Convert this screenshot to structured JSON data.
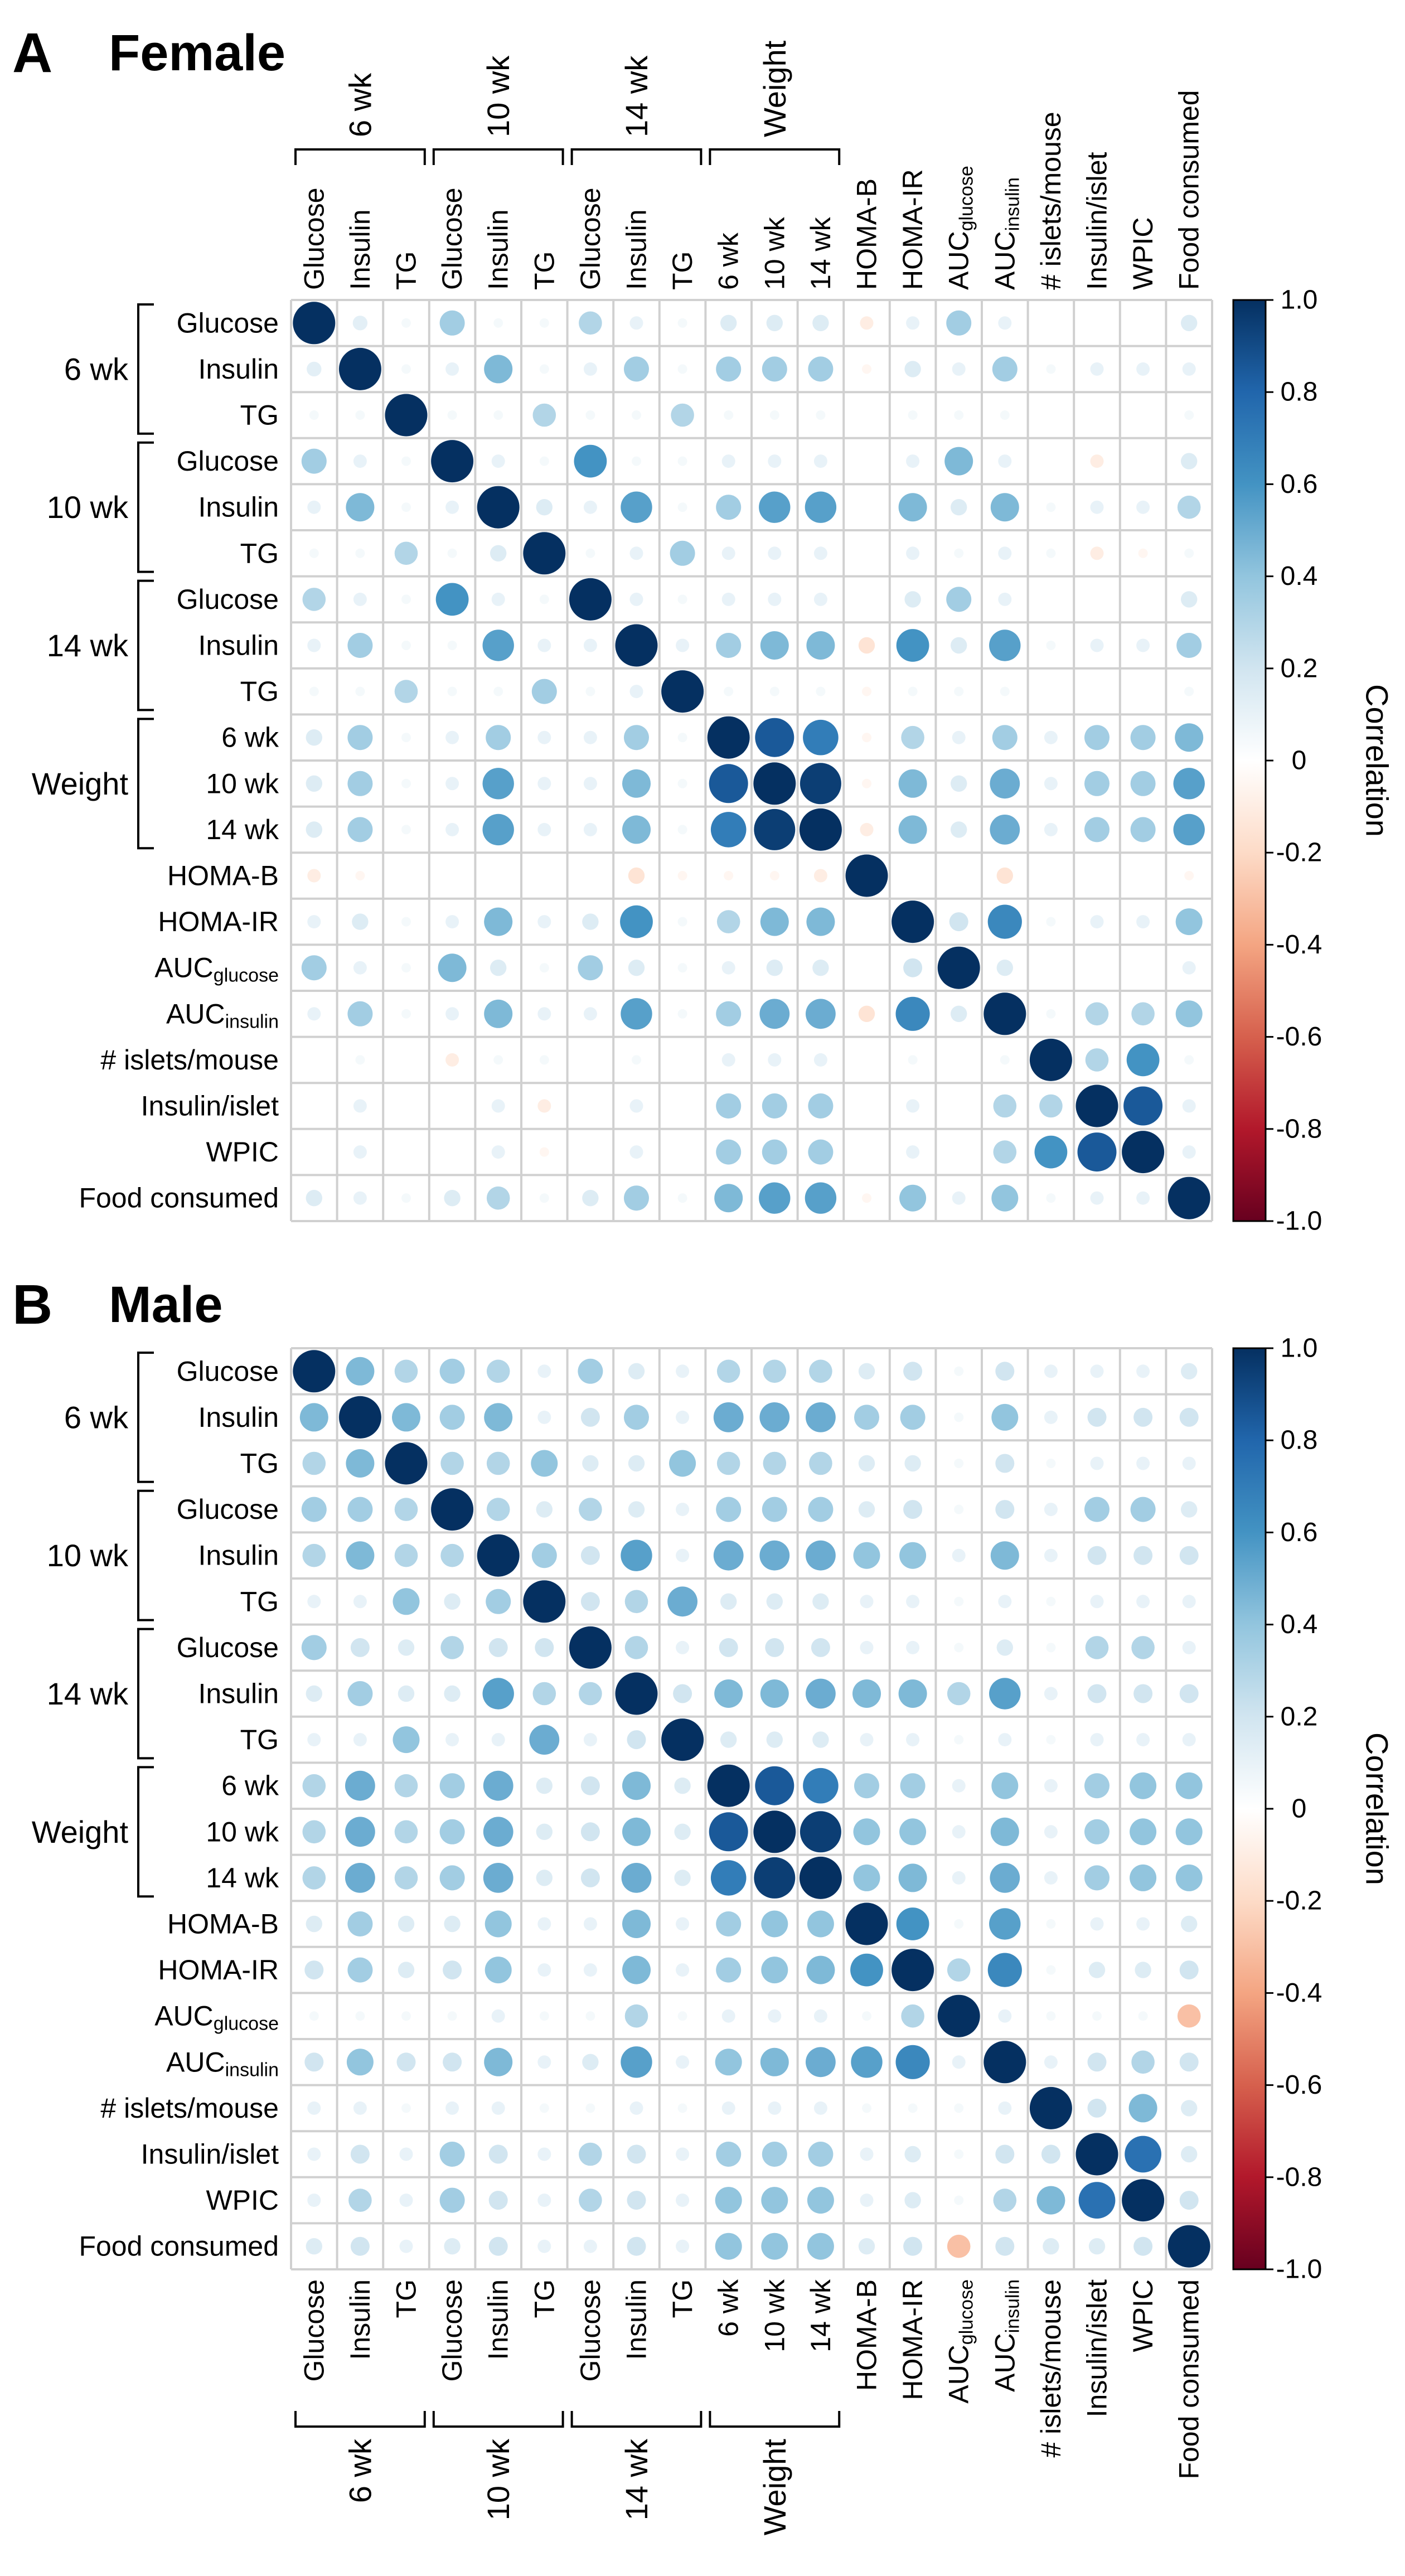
{
  "panels": [
    {
      "letter": "A",
      "title": "Female"
    },
    {
      "letter": "B",
      "title": "Male"
    }
  ],
  "row_labels": [
    {
      "text": "Glucose"
    },
    {
      "text": "Insulin"
    },
    {
      "text": "TG"
    },
    {
      "text": "Glucose"
    },
    {
      "text": "Insulin"
    },
    {
      "text": "TG"
    },
    {
      "text": "Glucose"
    },
    {
      "text": "Insulin"
    },
    {
      "text": "TG"
    },
    {
      "text": "6 wk"
    },
    {
      "text": "10 wk"
    },
    {
      "text": "14 wk"
    },
    {
      "text": "HOMA-B"
    },
    {
      "text": "HOMA-IR"
    },
    {
      "text": "AUC",
      "sub": "glucose"
    },
    {
      "text": "AUC",
      "sub": "insulin"
    },
    {
      "text": "# islets/mouse"
    },
    {
      "text": "Insulin/islet"
    },
    {
      "text": "WPIC"
    },
    {
      "text": "Food consumed"
    }
  ],
  "groups": [
    {
      "label": "6 wk",
      "rows": [
        0,
        2
      ]
    },
    {
      "label": "10 wk",
      "rows": [
        3,
        5
      ]
    },
    {
      "label": "14 wk",
      "rows": [
        6,
        8
      ]
    },
    {
      "label": "Weight",
      "rows": [
        9,
        11
      ]
    }
  ],
  "colorbar": {
    "title": "Correlation",
    "ticks": [
      "1.0",
      "0.8",
      "0.6",
      "0.4",
      "0.2",
      "0",
      "-0.2",
      "-0.4",
      "-0.6",
      "-0.8",
      "-1.0"
    ],
    "colors": [
      "#67001f",
      "#b2182b",
      "#d6604d",
      "#f4a582",
      "#fddbc7",
      "#ffffff",
      "#d1e5f0",
      "#92c5de",
      "#4393c3",
      "#2166ac",
      "#053061"
    ]
  },
  "chart_data": [
    {
      "type": "heatmap",
      "title": "Female",
      "vmin": -1,
      "vmax": 1,
      "matrix": [
        [
          1,
          0.12,
          0.05,
          0.35,
          0.05,
          0.05,
          0.3,
          0.1,
          0.05,
          0.15,
          0.15,
          0.15,
          -0.1,
          0.1,
          0.35,
          0.1,
          0,
          0,
          0,
          0.15
        ],
        [
          0.12,
          1,
          0.05,
          0.1,
          0.45,
          0.05,
          0.1,
          0.35,
          0.05,
          0.35,
          0.35,
          0.35,
          -0.05,
          0.15,
          0.1,
          0.35,
          0.05,
          0.1,
          0.1,
          0.1
        ],
        [
          0.05,
          0.05,
          1,
          0.05,
          0.05,
          0.3,
          0.05,
          0.05,
          0.3,
          0.05,
          0.05,
          0.05,
          0,
          0.05,
          0.05,
          0.05,
          0,
          0,
          0,
          0.05
        ],
        [
          0.35,
          0.1,
          0.05,
          1,
          0.1,
          0.05,
          0.6,
          0.05,
          0.05,
          0.1,
          0.1,
          0.1,
          0,
          0.1,
          0.45,
          0.1,
          0,
          -0.1,
          0,
          0.15
        ],
        [
          0.1,
          0.45,
          0.05,
          0.1,
          1,
          0.15,
          0.1,
          0.55,
          0.05,
          0.35,
          0.55,
          0.55,
          0,
          0.45,
          0.15,
          0.45,
          0.05,
          0.1,
          0.1,
          0.3
        ],
        [
          0.05,
          0.05,
          0.3,
          0.05,
          0.15,
          1,
          0.05,
          0.1,
          0.35,
          0.1,
          0.1,
          0.1,
          0,
          0.1,
          0.05,
          0.1,
          0.05,
          -0.1,
          -0.05,
          0.05
        ],
        [
          0.3,
          0.1,
          0.05,
          0.6,
          0.1,
          0.05,
          1,
          0.1,
          0.05,
          0.1,
          0.1,
          0.1,
          0,
          0.15,
          0.35,
          0.1,
          0,
          0,
          0,
          0.15
        ],
        [
          0.1,
          0.35,
          0.05,
          0.05,
          0.55,
          0.1,
          0.1,
          1,
          0.1,
          0.35,
          0.45,
          0.45,
          -0.15,
          0.6,
          0.15,
          0.55,
          0.05,
          0.1,
          0.1,
          0.35
        ],
        [
          0.05,
          0.05,
          0.3,
          0.05,
          0.05,
          0.35,
          0.05,
          0.1,
          1,
          0.05,
          0.05,
          0.05,
          -0.05,
          0.05,
          0.05,
          0.05,
          0,
          0,
          0,
          0.05
        ],
        [
          0.15,
          0.35,
          0.05,
          0.1,
          0.35,
          0.1,
          0.1,
          0.35,
          0.05,
          1,
          0.85,
          0.7,
          -0.05,
          0.3,
          0.1,
          0.35,
          0.1,
          0.35,
          0.35,
          0.45
        ],
        [
          0.15,
          0.35,
          0.05,
          0.1,
          0.55,
          0.1,
          0.1,
          0.45,
          0.05,
          0.85,
          1,
          0.95,
          -0.05,
          0.45,
          0.15,
          0.5,
          0.1,
          0.35,
          0.35,
          0.55
        ],
        [
          0.15,
          0.35,
          0.05,
          0.1,
          0.55,
          0.1,
          0.1,
          0.45,
          0.05,
          0.7,
          0.95,
          1,
          -0.1,
          0.45,
          0.15,
          0.5,
          0.1,
          0.35,
          0.35,
          0.55
        ],
        [
          -0.1,
          -0.05,
          0,
          0,
          0,
          0,
          0,
          -0.15,
          -0.05,
          -0.05,
          -0.05,
          -0.1,
          1,
          0,
          0,
          -0.15,
          0,
          0,
          0,
          -0.05
        ],
        [
          0.1,
          0.15,
          0.05,
          0.1,
          0.45,
          0.1,
          0.15,
          0.6,
          0.05,
          0.3,
          0.45,
          0.45,
          0,
          1,
          0.2,
          0.65,
          0.05,
          0.1,
          0.1,
          0.4
        ],
        [
          0.35,
          0.1,
          0.05,
          0.45,
          0.15,
          0.05,
          0.35,
          0.15,
          0.05,
          0.1,
          0.15,
          0.15,
          0,
          0.2,
          1,
          0.15,
          0,
          0,
          0,
          0.1
        ],
        [
          0.1,
          0.35,
          0.05,
          0.1,
          0.45,
          0.1,
          0.1,
          0.55,
          0.05,
          0.35,
          0.5,
          0.5,
          -0.15,
          0.65,
          0.15,
          1,
          0.05,
          0.3,
          0.3,
          0.4
        ],
        [
          0,
          0.05,
          0,
          -0.1,
          0.05,
          0.05,
          0,
          0.05,
          0,
          0.1,
          0.1,
          0.1,
          0,
          0.05,
          0,
          0.05,
          1,
          0.3,
          0.6,
          0.05
        ],
        [
          0,
          0.1,
          0,
          0,
          0.1,
          -0.1,
          0,
          0.1,
          0,
          0.35,
          0.35,
          0.35,
          0,
          0.1,
          0,
          0.3,
          0.3,
          1,
          0.85,
          0.1
        ],
        [
          0,
          0.1,
          0,
          0,
          0.1,
          -0.05,
          0,
          0.1,
          0,
          0.35,
          0.35,
          0.35,
          0,
          0.1,
          0,
          0.3,
          0.6,
          0.85,
          1,
          0.1
        ],
        [
          0.15,
          0.1,
          0.05,
          0.15,
          0.3,
          0.05,
          0.15,
          0.35,
          0.05,
          0.45,
          0.55,
          0.55,
          -0.05,
          0.4,
          0.1,
          0.4,
          0.05,
          0.1,
          0.1,
          1
        ]
      ]
    },
    {
      "type": "heatmap",
      "title": "Male",
      "vmin": -1,
      "vmax": 1,
      "matrix": [
        [
          1,
          0.45,
          0.3,
          0.35,
          0.3,
          0.1,
          0.35,
          0.15,
          0.1,
          0.3,
          0.3,
          0.3,
          0.15,
          0.2,
          0.05,
          0.2,
          0.1,
          0.1,
          0.1,
          0.15
        ],
        [
          0.45,
          1,
          0.45,
          0.35,
          0.45,
          0.1,
          0.2,
          0.35,
          0.1,
          0.5,
          0.5,
          0.5,
          0.35,
          0.35,
          0.05,
          0.4,
          0.1,
          0.2,
          0.2,
          0.2
        ],
        [
          0.3,
          0.45,
          1,
          0.3,
          0.3,
          0.4,
          0.15,
          0.15,
          0.4,
          0.3,
          0.3,
          0.3,
          0.15,
          0.15,
          0.05,
          0.2,
          0.05,
          0.1,
          0.1,
          0.1
        ],
        [
          0.35,
          0.35,
          0.3,
          1,
          0.3,
          0.15,
          0.3,
          0.15,
          0.1,
          0.35,
          0.35,
          0.35,
          0.15,
          0.2,
          0.05,
          0.2,
          0.1,
          0.35,
          0.35,
          0.15
        ],
        [
          0.3,
          0.45,
          0.3,
          0.3,
          1,
          0.35,
          0.2,
          0.55,
          0.1,
          0.5,
          0.5,
          0.5,
          0.4,
          0.4,
          0.1,
          0.45,
          0.1,
          0.2,
          0.2,
          0.2
        ],
        [
          0.1,
          0.1,
          0.4,
          0.15,
          0.35,
          1,
          0.2,
          0.3,
          0.5,
          0.15,
          0.15,
          0.15,
          0.1,
          0.1,
          0.05,
          0.1,
          0.05,
          0.1,
          0.1,
          0.1
        ],
        [
          0.35,
          0.2,
          0.15,
          0.3,
          0.2,
          0.2,
          1,
          0.3,
          0.1,
          0.2,
          0.2,
          0.2,
          0.1,
          0.1,
          0.05,
          0.15,
          0.05,
          0.3,
          0.3,
          0.1
        ],
        [
          0.15,
          0.35,
          0.15,
          0.15,
          0.55,
          0.3,
          0.3,
          1,
          0.2,
          0.45,
          0.45,
          0.5,
          0.45,
          0.45,
          0.3,
          0.55,
          0.1,
          0.2,
          0.2,
          0.2
        ],
        [
          0.1,
          0.1,
          0.4,
          0.1,
          0.1,
          0.5,
          0.1,
          0.2,
          1,
          0.15,
          0.15,
          0.15,
          0.1,
          0.1,
          0.05,
          0.1,
          0.05,
          0.1,
          0.1,
          0.1
        ],
        [
          0.3,
          0.5,
          0.3,
          0.35,
          0.5,
          0.15,
          0.2,
          0.45,
          0.15,
          1,
          0.85,
          0.7,
          0.35,
          0.35,
          0.1,
          0.4,
          0.1,
          0.35,
          0.4,
          0.4
        ],
        [
          0.3,
          0.5,
          0.3,
          0.35,
          0.5,
          0.15,
          0.2,
          0.45,
          0.15,
          0.85,
          1,
          0.95,
          0.4,
          0.4,
          0.1,
          0.45,
          0.1,
          0.35,
          0.4,
          0.4
        ],
        [
          0.3,
          0.5,
          0.3,
          0.35,
          0.5,
          0.15,
          0.2,
          0.5,
          0.15,
          0.7,
          0.95,
          1,
          0.4,
          0.45,
          0.1,
          0.5,
          0.1,
          0.35,
          0.4,
          0.4
        ],
        [
          0.15,
          0.35,
          0.15,
          0.15,
          0.4,
          0.1,
          0.1,
          0.45,
          0.1,
          0.35,
          0.4,
          0.4,
          1,
          0.6,
          0.05,
          0.55,
          0.05,
          0.1,
          0.1,
          0.15
        ],
        [
          0.2,
          0.35,
          0.15,
          0.2,
          0.4,
          0.1,
          0.1,
          0.45,
          0.1,
          0.35,
          0.4,
          0.45,
          0.6,
          1,
          0.3,
          0.65,
          0.05,
          0.15,
          0.15,
          0.2
        ],
        [
          0.05,
          0.05,
          0.05,
          0.05,
          0.1,
          0.05,
          0.05,
          0.3,
          0.05,
          0.1,
          0.1,
          0.1,
          0.05,
          0.3,
          1,
          0.1,
          0.05,
          0.05,
          0.05,
          -0.3
        ],
        [
          0.2,
          0.4,
          0.2,
          0.2,
          0.45,
          0.1,
          0.15,
          0.55,
          0.1,
          0.4,
          0.45,
          0.5,
          0.55,
          0.65,
          0.1,
          1,
          0.1,
          0.2,
          0.3,
          0.2
        ],
        [
          0.1,
          0.1,
          0.05,
          0.1,
          0.1,
          0.05,
          0.05,
          0.1,
          0.05,
          0.1,
          0.1,
          0.1,
          0.05,
          0.05,
          0.05,
          0.1,
          1,
          0.2,
          0.45,
          0.15
        ],
        [
          0.1,
          0.2,
          0.1,
          0.35,
          0.2,
          0.1,
          0.3,
          0.2,
          0.1,
          0.35,
          0.35,
          0.35,
          0.1,
          0.15,
          0.05,
          0.2,
          0.2,
          1,
          0.75,
          0.15
        ],
        [
          0.1,
          0.3,
          0.1,
          0.35,
          0.2,
          0.1,
          0.3,
          0.2,
          0.1,
          0.4,
          0.4,
          0.4,
          0.1,
          0.15,
          0.05,
          0.3,
          0.45,
          0.75,
          1,
          0.2
        ],
        [
          0.15,
          0.2,
          0.1,
          0.15,
          0.2,
          0.1,
          0.1,
          0.2,
          0.1,
          0.4,
          0.4,
          0.4,
          0.15,
          0.2,
          -0.3,
          0.2,
          0.15,
          0.15,
          0.2,
          1
        ]
      ]
    }
  ]
}
